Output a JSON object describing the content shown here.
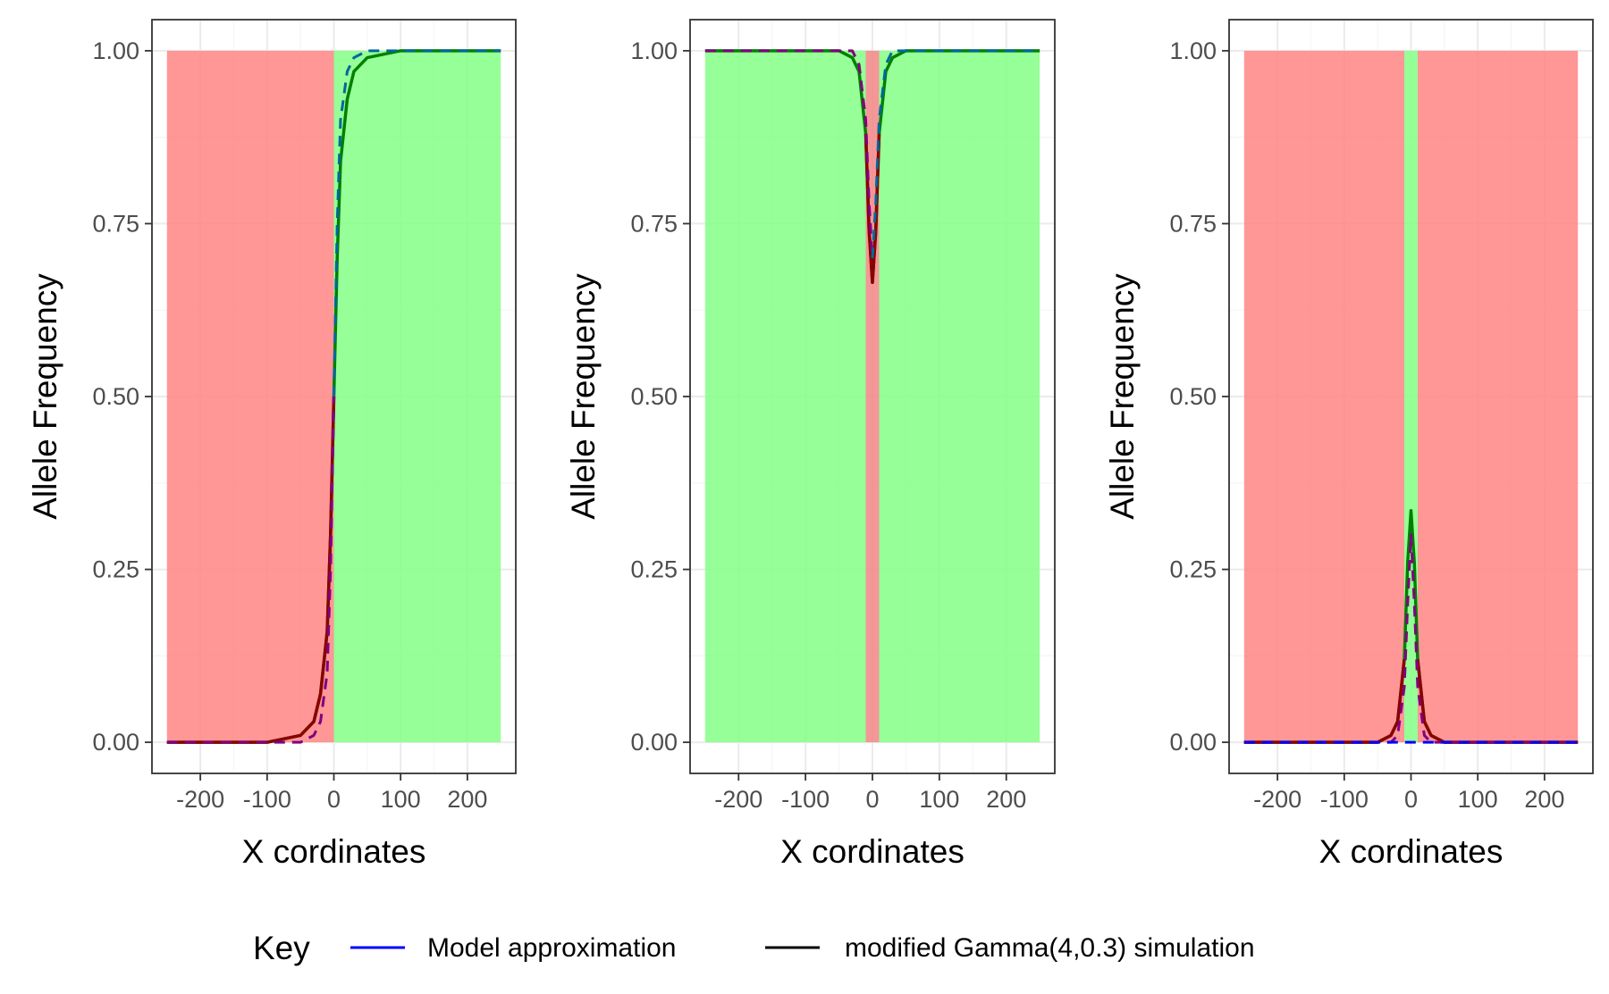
{
  "chart_data": [
    {
      "type": "line",
      "panel": "left",
      "xlabel": "X cordinates",
      "ylabel": "Allele Frequency",
      "xlim": [
        -250,
        250
      ],
      "ylim": [
        0,
        1
      ],
      "xticks": [
        -200,
        -100,
        0,
        100,
        200
      ],
      "xtick_labels": [
        "-200",
        "-100",
        "0",
        "100",
        "200"
      ],
      "yticks": [
        0,
        0.25,
        0.5,
        0.75,
        1
      ],
      "ytick_labels": [
        "0.00",
        "0.25",
        "0.50",
        "0.75",
        "1.00"
      ],
      "background_regions": [
        {
          "from": -250,
          "to": 0,
          "color": "#ff8080"
        },
        {
          "from": 0,
          "to": 250,
          "color": "#80ff80"
        }
      ],
      "shape": "cline",
      "series": [
        {
          "x": [
            -250,
            -100,
            -50,
            -30,
            -20,
            -10,
            -5,
            0,
            5,
            10,
            20,
            30,
            50,
            100,
            250
          ],
          "y": [
            0,
            0,
            0.01,
            0.03,
            0.07,
            0.16,
            0.3,
            0.5,
            0.7,
            0.84,
            0.93,
            0.97,
            0.99,
            1,
            1
          ],
          "color": "#008000",
          "dash": false,
          "width": 3.5
        },
        {
          "x": [
            -250,
            -100,
            -50,
            -30,
            -20,
            -10,
            -5,
            0
          ],
          "y": [
            0,
            0,
            0.01,
            0.03,
            0.07,
            0.16,
            0.3,
            0.5
          ],
          "color": "#8b0000",
          "dash": false,
          "width": 3.5
        },
        {
          "x": [
            -250,
            -100,
            -50,
            -30,
            -20,
            -10,
            -5,
            0
          ],
          "y": [
            0,
            0,
            0,
            0.01,
            0.03,
            0.1,
            0.25,
            0.5
          ],
          "color": "#800080",
          "dash": true,
          "width": 3
        },
        {
          "x": [
            0,
            5,
            10,
            20,
            30,
            50,
            100,
            250
          ],
          "y": [
            0.5,
            0.75,
            0.9,
            0.97,
            0.99,
            1,
            1,
            1
          ],
          "color": "#00689a",
          "dash": true,
          "width": 3
        }
      ]
    },
    {
      "type": "line",
      "panel": "middle",
      "xlabel": "X cordinates",
      "ylabel": "Allele Frequency",
      "xlim": [
        -250,
        250
      ],
      "ylim": [
        0,
        1
      ],
      "xticks": [
        -200,
        -100,
        0,
        100,
        200
      ],
      "xtick_labels": [
        "-200",
        "-100",
        "0",
        "100",
        "200"
      ],
      "yticks": [
        0,
        0.25,
        0.5,
        0.75,
        1
      ],
      "ytick_labels": [
        "0.00",
        "0.25",
        "0.50",
        "0.75",
        "1.00"
      ],
      "background_regions": [
        {
          "from": -250,
          "to": -10,
          "color": "#80ff80"
        },
        {
          "from": -10,
          "to": 10,
          "color": "#f08080"
        },
        {
          "from": 10,
          "to": 250,
          "color": "#80ff80"
        }
      ],
      "shape": "dip",
      "series": [
        {
          "x": [
            -250,
            -50,
            -30,
            -20,
            -10,
            -5,
            0,
            5,
            10,
            20,
            30,
            50,
            250
          ],
          "y": [
            1,
            1,
            0.99,
            0.97,
            0.88,
            0.74,
            0.665,
            0.74,
            0.88,
            0.97,
            0.99,
            1,
            1
          ],
          "color": "#008000",
          "dash": false,
          "width": 3.5
        },
        {
          "x": [
            -10,
            -5,
            0,
            5,
            10
          ],
          "y": [
            0.88,
            0.74,
            0.665,
            0.74,
            0.88
          ],
          "color": "#8b0000",
          "dash": false,
          "width": 3.5
        },
        {
          "x": [
            -250,
            -30,
            -20,
            -10,
            -5,
            0
          ],
          "y": [
            1,
            1,
            0.98,
            0.9,
            0.78,
            0.7
          ],
          "color": "#800080",
          "dash": true,
          "width": 3
        },
        {
          "x": [
            0,
            5,
            10,
            20,
            30,
            250
          ],
          "y": [
            0.7,
            0.78,
            0.9,
            0.98,
            1,
            1
          ],
          "color": "#00689a",
          "dash": true,
          "width": 3
        }
      ]
    },
    {
      "type": "line",
      "panel": "right",
      "xlabel": "X cordinates",
      "ylabel": "Allele Frequency",
      "xlim": [
        -250,
        250
      ],
      "ylim": [
        0,
        1
      ],
      "xticks": [
        -200,
        -100,
        0,
        100,
        200
      ],
      "xtick_labels": [
        "-200",
        "-100",
        "0",
        "100",
        "200"
      ],
      "yticks": [
        0,
        0.25,
        0.5,
        0.75,
        1
      ],
      "ytick_labels": [
        "0.00",
        "0.25",
        "0.50",
        "0.75",
        "1.00"
      ],
      "background_regions": [
        {
          "from": -250,
          "to": -10,
          "color": "#ff8080"
        },
        {
          "from": -10,
          "to": 10,
          "color": "#80ff80"
        },
        {
          "from": 10,
          "to": 250,
          "color": "#ff8080"
        }
      ],
      "shape": "peak",
      "series": [
        {
          "x": [
            -250,
            -50,
            -30,
            -20,
            -10,
            -5,
            0,
            5,
            10,
            20,
            30,
            50,
            250
          ],
          "y": [
            0,
            0,
            0.01,
            0.03,
            0.12,
            0.26,
            0.335,
            0.26,
            0.12,
            0.03,
            0.01,
            0,
            0
          ],
          "color": "#008000",
          "dash": false,
          "width": 3.5
        },
        {
          "x": [
            -250,
            -50,
            -30,
            -20,
            -10
          ],
          "y": [
            0,
            0,
            0.01,
            0.03,
            0.12
          ],
          "color": "#8b0000",
          "dash": false,
          "width": 3.5
        },
        {
          "x": [
            10,
            20,
            30,
            50,
            250
          ],
          "y": [
            0.12,
            0.03,
            0.01,
            0,
            0
          ],
          "color": "#8b0000",
          "dash": false,
          "width": 3.5
        },
        {
          "x": [
            -250,
            -30,
            -20,
            -10,
            -5,
            0,
            5,
            10,
            20,
            30,
            250
          ],
          "y": [
            0,
            0,
            0.01,
            0.08,
            0.2,
            0.3,
            0.2,
            0.08,
            0.01,
            0,
            0
          ],
          "color": "#800080",
          "dash": true,
          "width": 3
        },
        {
          "x": [
            -250,
            -30,
            30,
            250
          ],
          "y": [
            0,
            0,
            0,
            0
          ],
          "color": "#0000ff",
          "dash": true,
          "width": 3
        }
      ]
    }
  ],
  "legend": {
    "title": "Key",
    "items": [
      {
        "label": "Model approximation",
        "color": "#0000ff"
      },
      {
        "label": "modified Gamma(4,0.3) simulation",
        "color": "#000000"
      }
    ]
  },
  "colors": {
    "panel_border": "#333333",
    "grid_major": "#ebebeb",
    "grid_minor": "#f5f5f5",
    "tick_text": "#4d4d4d"
  }
}
